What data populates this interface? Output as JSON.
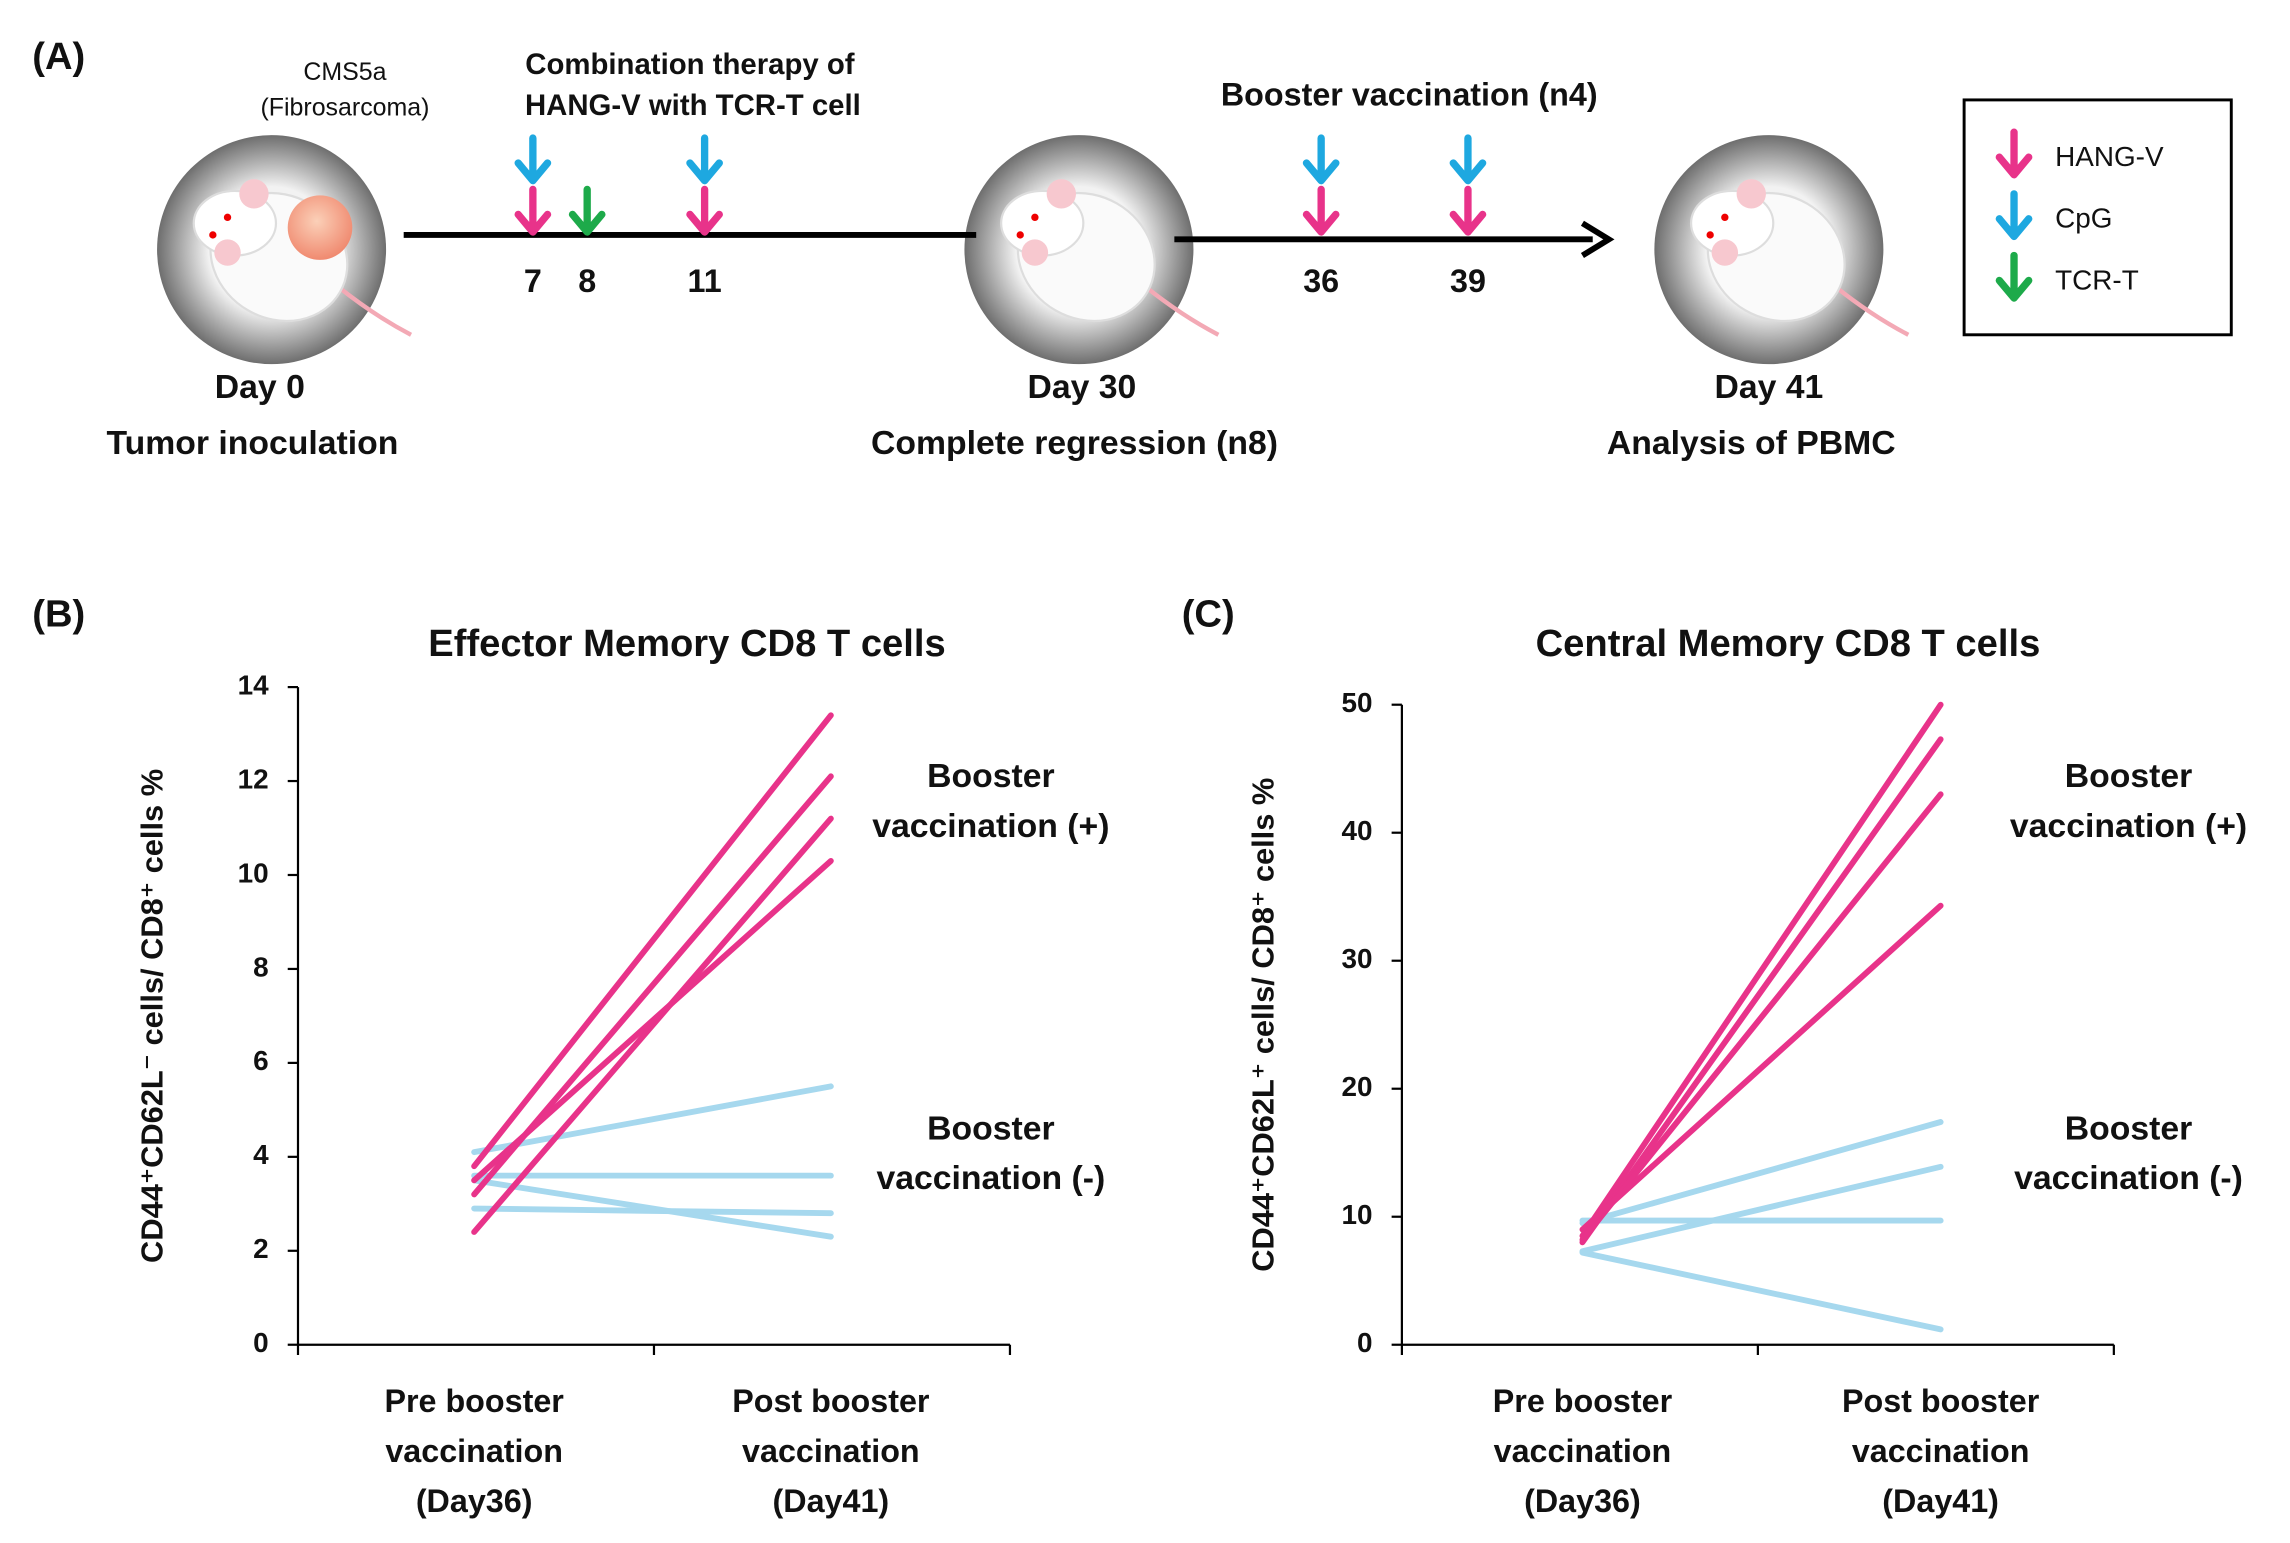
{
  "panel_a": {
    "label": "(A)",
    "tumor": [
      "CMS5a",
      "(Fibrosarcoma)"
    ],
    "therapy": [
      "Combination therapy of",
      "HANG-V with TCR-T cell"
    ],
    "booster": "Booster vaccination (n4)",
    "days": [
      "7",
      "8",
      "11",
      "36",
      "39"
    ],
    "milestones": [
      {
        "day": "Day 0",
        "event": "Tumor inoculation"
      },
      {
        "day": "Day 30",
        "event": "Complete regression (n8)"
      },
      {
        "day": "Day 41",
        "event": "Analysis of PBMC"
      }
    ],
    "legend": [
      {
        "name": "HANG-V",
        "color": "#e8338a"
      },
      {
        "name": "CpG",
        "color": "#1ea8e0"
      },
      {
        "name": "TCR-T",
        "color": "#1daa4a"
      }
    ]
  },
  "chart_data": [
    {
      "type": "line",
      "label": "(B)",
      "title": "Effector Memory CD8 T cells",
      "ylabel": "CD44⁺CD62L⁻ cells/ CD8⁺ cells %",
      "categories": [
        [
          "Pre booster",
          "vaccination",
          "(Day36)"
        ],
        [
          "Post booster",
          "vaccination",
          "(Day41)"
        ]
      ],
      "ylim": [
        0,
        14
      ],
      "yticks": [
        0,
        2,
        4,
        6,
        8,
        10,
        12,
        14
      ],
      "annotations": [
        [
          "Booster",
          "vaccination (+)"
        ],
        [
          "Booster",
          "vaccination (-)"
        ]
      ],
      "series": [
        {
          "color": "#a6d8ee",
          "values": [
            4.1,
            5.5
          ]
        },
        {
          "color": "#a6d8ee",
          "values": [
            3.6,
            3.6
          ]
        },
        {
          "color": "#a6d8ee",
          "values": [
            3.5,
            2.3
          ]
        },
        {
          "color": "#a6d8ee",
          "values": [
            2.9,
            2.8
          ]
        },
        {
          "color": "#e8338a",
          "values": [
            3.8,
            13.4
          ]
        },
        {
          "color": "#e8338a",
          "values": [
            3.2,
            12.1
          ]
        },
        {
          "color": "#e8338a",
          "values": [
            2.4,
            11.2
          ]
        },
        {
          "color": "#e8338a",
          "values": [
            3.5,
            10.3
          ]
        }
      ]
    },
    {
      "type": "line",
      "label": "(C)",
      "title": "Central Memory CD8 T cells",
      "ylabel": "CD44⁺CD62L⁺ cells/ CD8⁺ cells %",
      "categories": [
        [
          "Pre booster",
          "vaccination",
          "(Day36)"
        ],
        [
          "Post booster",
          "vaccination",
          "(Day41)"
        ]
      ],
      "ylim": [
        0,
        50
      ],
      "yticks": [
        0,
        10,
        20,
        30,
        40,
        50
      ],
      "annotations": [
        [
          "Booster",
          "vaccination (+)"
        ],
        [
          "Booster",
          "vaccination (-)"
        ]
      ],
      "series": [
        {
          "color": "#a6d8ee",
          "values": [
            9.5,
            17.4
          ]
        },
        {
          "color": "#a6d8ee",
          "values": [
            7.3,
            13.9
          ]
        },
        {
          "color": "#a6d8ee",
          "values": [
            9.7,
            9.7
          ]
        },
        {
          "color": "#a6d8ee",
          "values": [
            7.2,
            1.2
          ]
        },
        {
          "color": "#e8338a",
          "values": [
            8.5,
            50
          ]
        },
        {
          "color": "#e8338a",
          "values": [
            8.0,
            47.3
          ]
        },
        {
          "color": "#e8338a",
          "values": [
            8.2,
            43
          ]
        },
        {
          "color": "#e8338a",
          "values": [
            9.0,
            34.3
          ]
        }
      ]
    }
  ]
}
